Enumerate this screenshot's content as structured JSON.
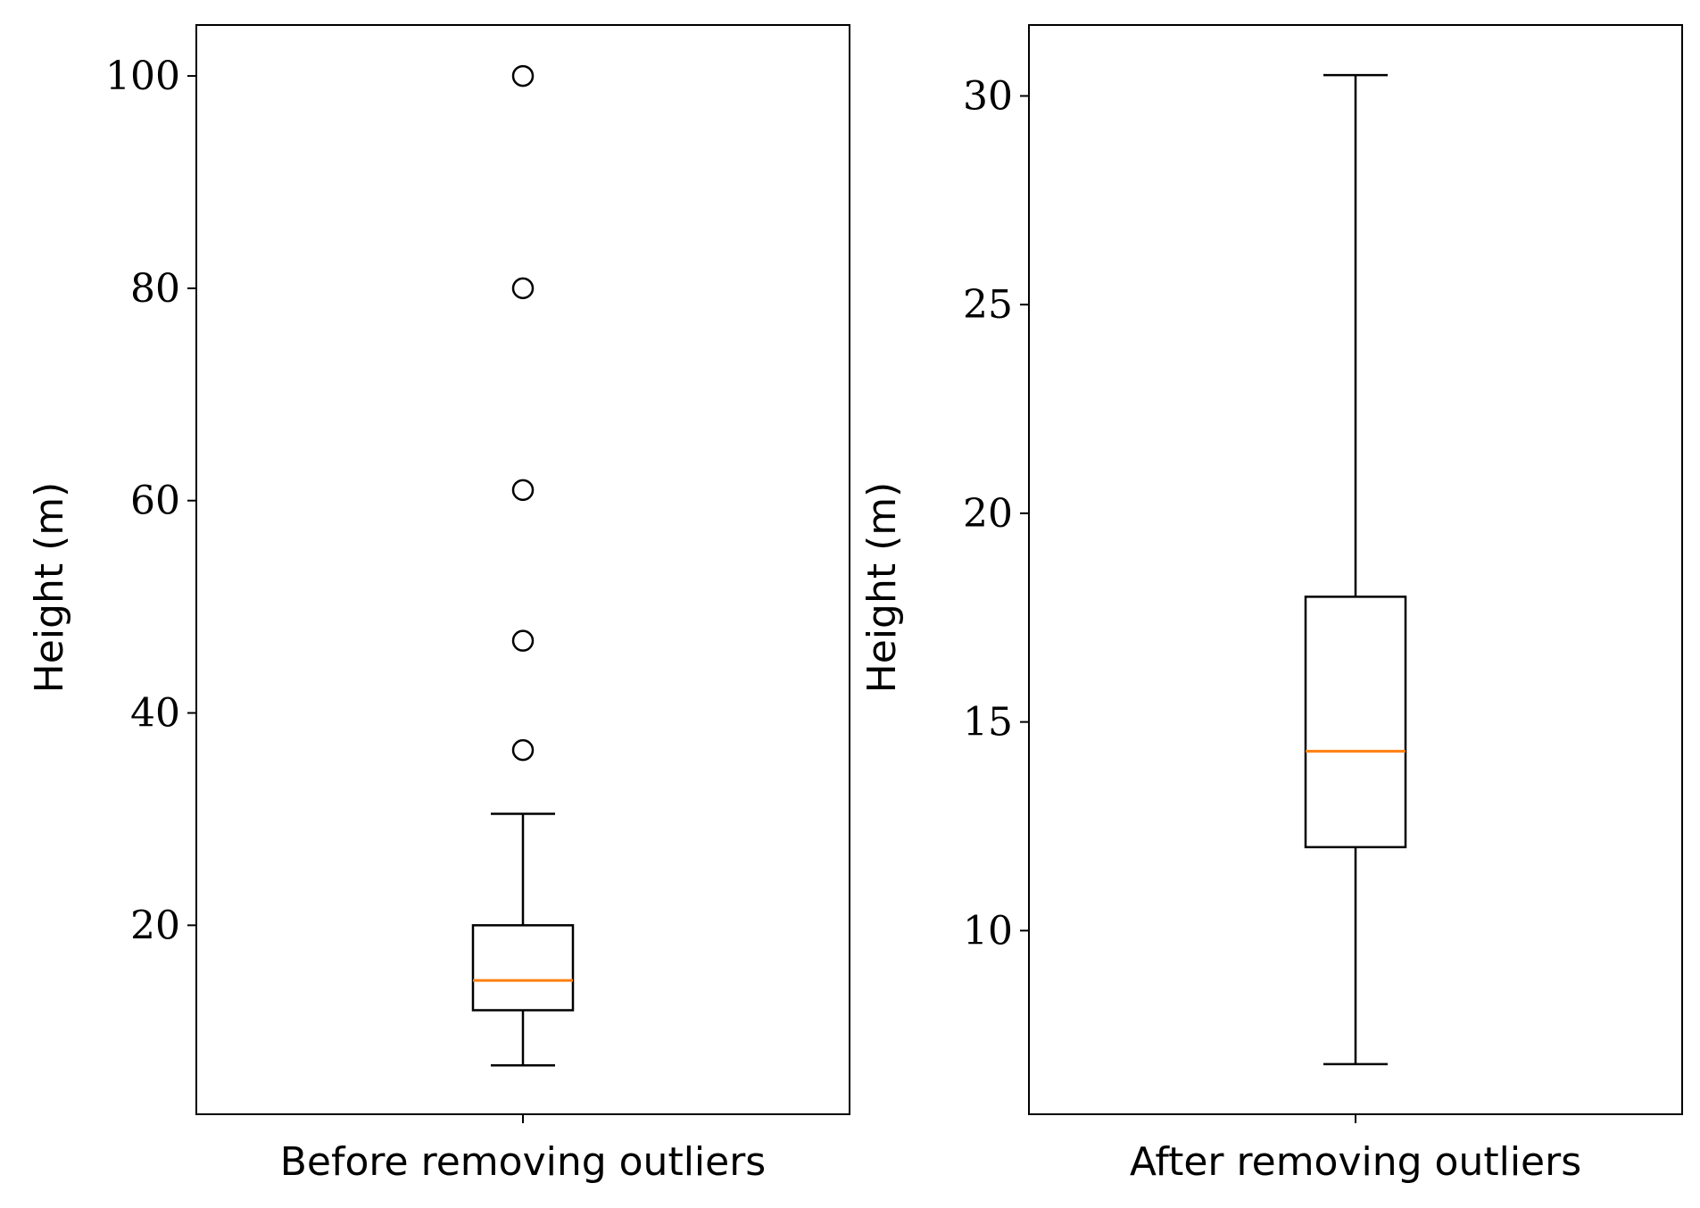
{
  "chart_data": [
    {
      "type": "boxplot",
      "xlabel": "Before removing outliers",
      "ylabel": "Height (m)",
      "ylim": [
        2.2,
        104.8
      ],
      "yticks": [
        20,
        40,
        60,
        80,
        100
      ],
      "grid": false,
      "box": {
        "whisker_low": 6.8,
        "q1": 12.0,
        "median": 14.8,
        "q3": 20.0,
        "whisker_high": 30.5
      },
      "outliers": [
        36.5,
        46.8,
        61.0,
        80.0,
        100.0
      ],
      "colors": {
        "box": "#000000",
        "median": "#ff7f0e"
      }
    },
    {
      "type": "boxplot",
      "xlabel": "After removing outliers",
      "ylabel": "Height (m)",
      "ylim": [
        5.6,
        31.7
      ],
      "yticks": [
        10,
        15,
        20,
        25,
        30
      ],
      "grid": false,
      "box": {
        "whisker_low": 6.8,
        "q1": 12.0,
        "median": 14.3,
        "q3": 18.0,
        "whisker_high": 30.5
      },
      "outliers": [],
      "colors": {
        "box": "#000000",
        "median": "#ff7f0e"
      }
    }
  ]
}
